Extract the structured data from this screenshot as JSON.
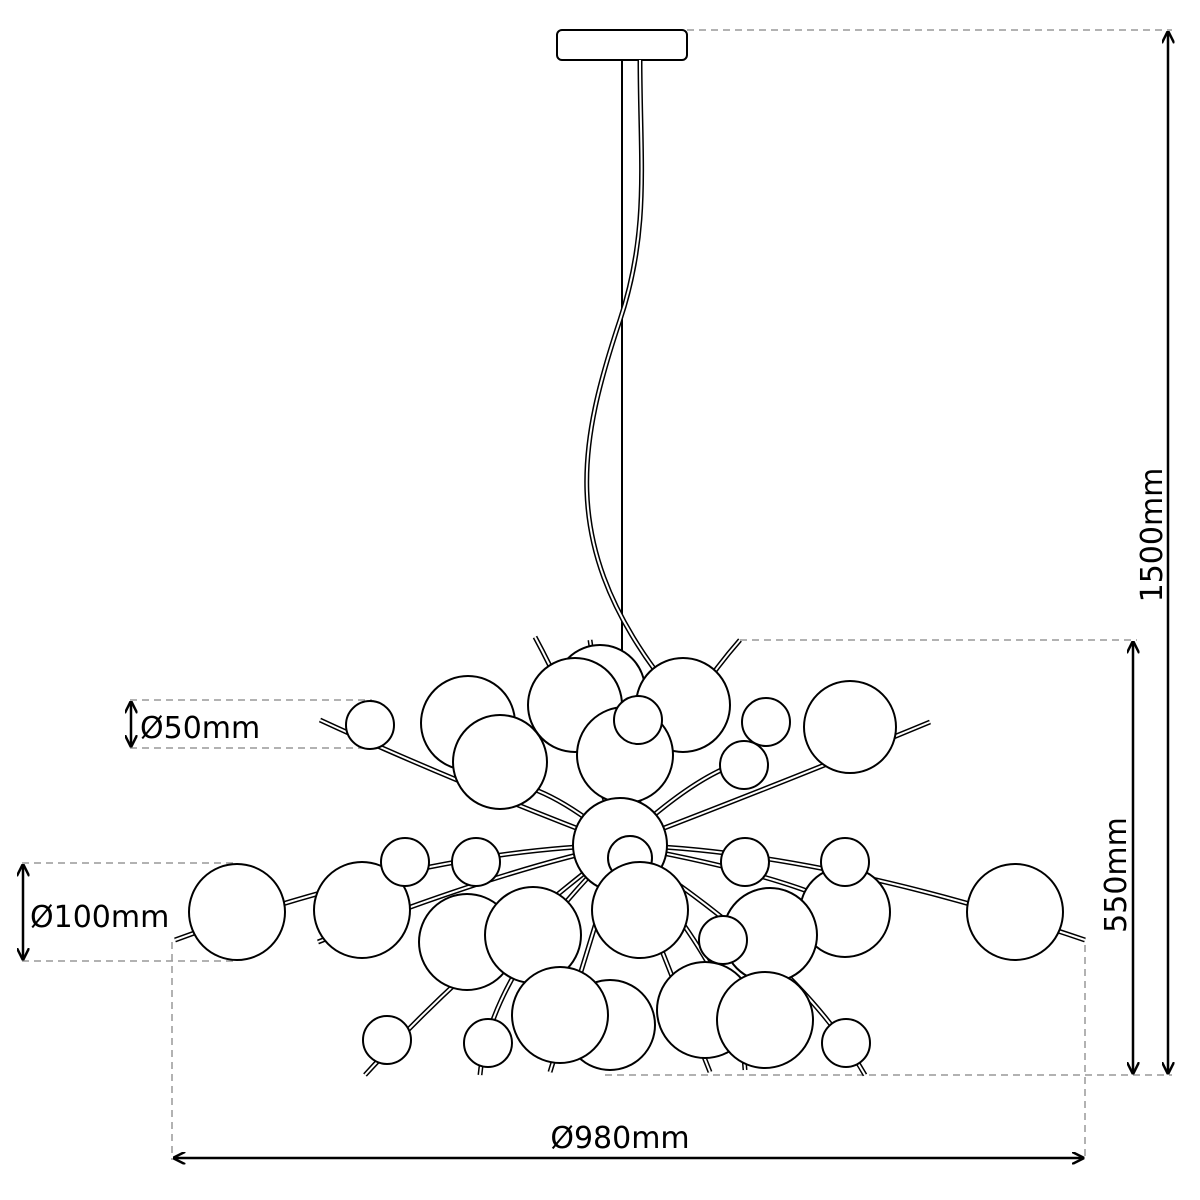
{
  "dimensions": {
    "small_sphere": "Ø50mm",
    "large_sphere": "Ø100mm",
    "overall_diameter": "Ø980mm",
    "body_height": "550mm",
    "total_height": "1500mm"
  },
  "colors": {
    "line": "#000000",
    "dimension_leader": "#999999",
    "background": "#ffffff"
  }
}
